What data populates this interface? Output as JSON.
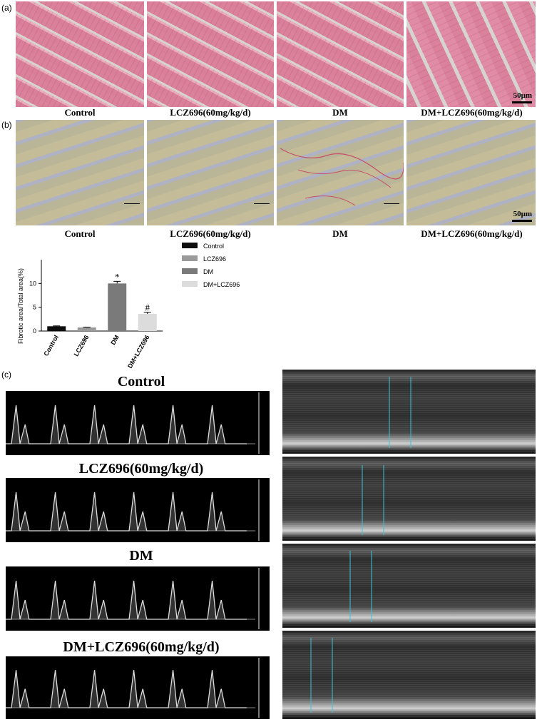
{
  "panels": {
    "a_label": "(a)",
    "b_label": "(b)",
    "c_label": "(c)"
  },
  "histology_captions": [
    "Control",
    "LCZ696(60mg/kg/d)",
    "DM",
    "DM+LCZ696(60mg/kg/d)"
  ],
  "scale_bar_label": "50μm",
  "chart_data": {
    "type": "bar",
    "categories": [
      "Control",
      "LCZ696",
      "DM",
      "DM+LCZ696"
    ],
    "values": [
      1.0,
      0.75,
      10.0,
      3.6
    ],
    "errors": [
      0.08,
      0.08,
      0.45,
      0.35
    ],
    "annotations": [
      "",
      "",
      "*",
      "#"
    ],
    "colors": [
      "#0d0d0d",
      "#9a9a9a",
      "#7a7a7a",
      "#dcdcdc"
    ],
    "ylabel": "Fibrotic area/Total area(%)",
    "xlabel": "",
    "ylim": [
      0,
      15
    ],
    "yticks": [
      0,
      5,
      10
    ],
    "legend": [
      "Control",
      "LCZ696",
      "DM",
      "DM+LCZ696"
    ],
    "legend_position": "right"
  },
  "echo_titles": [
    "Control",
    "LCZ696(60mg/kg/d)",
    "DM",
    "DM+LCZ696(60mg/kg/d)"
  ]
}
